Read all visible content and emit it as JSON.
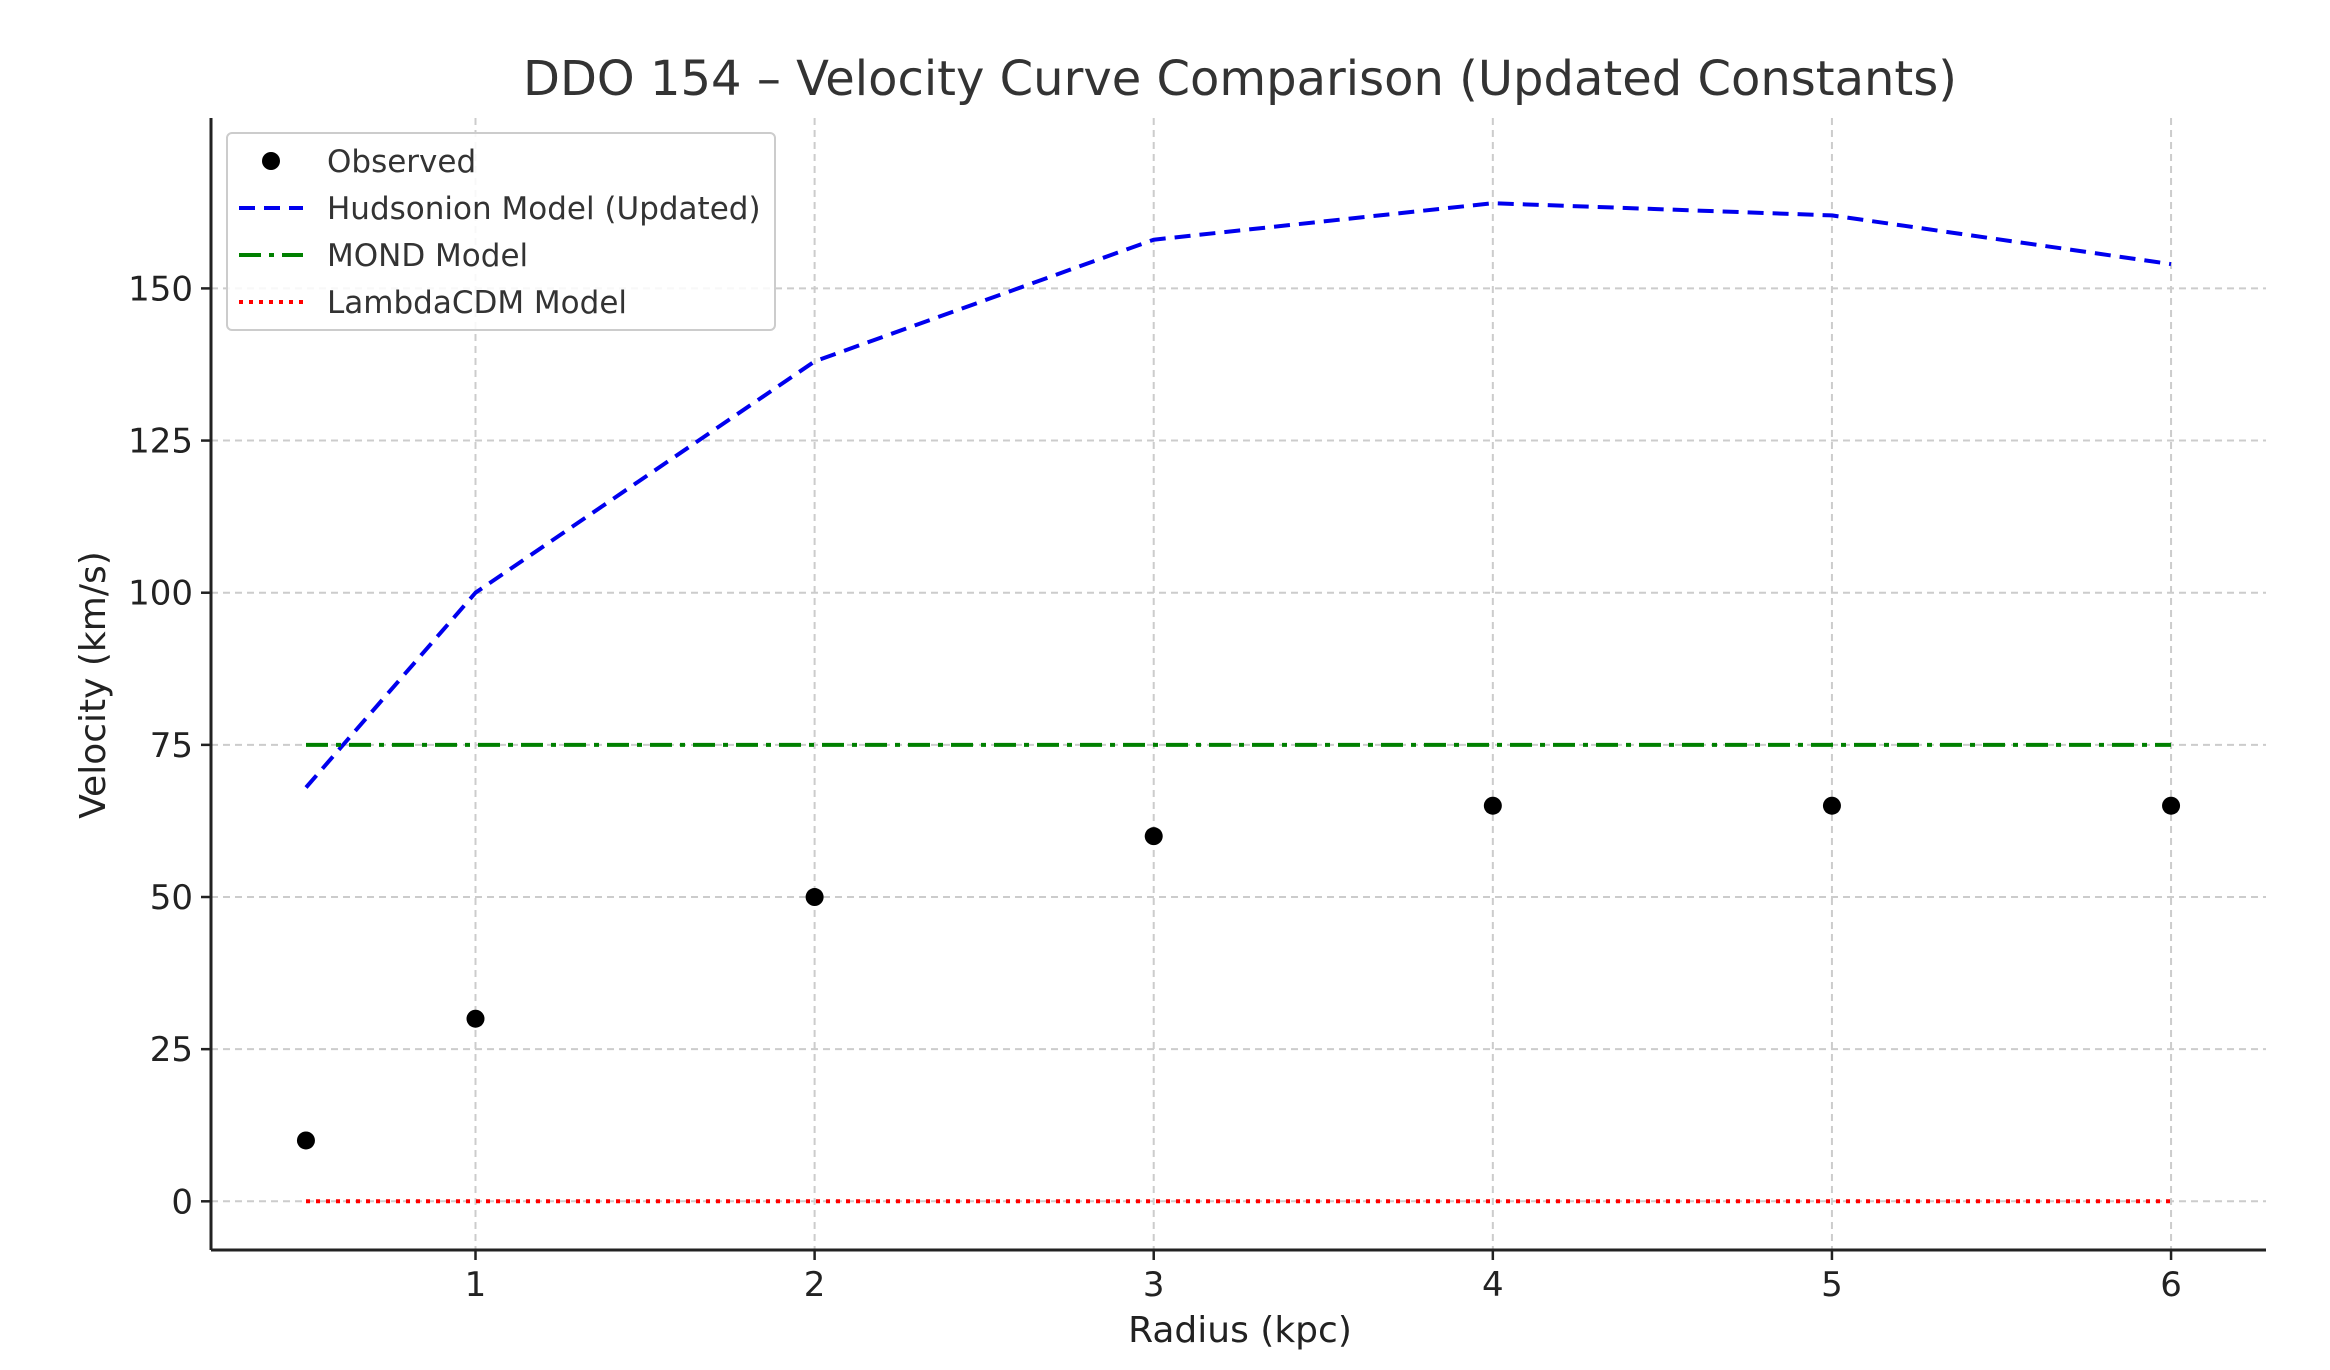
{
  "chart_data": {
    "type": "line",
    "title": "DDO 154 – Velocity Curve Comparison (Updated Constants)",
    "xlabel": "Radius (kpc)",
    "ylabel": "Velocity (km/s)",
    "xlim": [
      0.22,
      6.28
    ],
    "ylim": [
      -8,
      178
    ],
    "xticks": [
      1,
      2,
      3,
      4,
      5,
      6
    ],
    "yticks": [
      0,
      25,
      50,
      75,
      100,
      125,
      150
    ],
    "grid": true,
    "legend_position": "top-left",
    "x": [
      0.5,
      1,
      2,
      3,
      4,
      5,
      6
    ],
    "series": [
      {
        "name": "Observed",
        "kind": "scatter",
        "color": "#000000",
        "values": [
          10,
          30,
          50,
          60,
          65,
          65,
          65
        ]
      },
      {
        "name": "Hudsonion Model (Updated)",
        "kind": "line",
        "style": "dashed",
        "color": "#0000ee",
        "values": [
          68,
          100,
          138,
          158,
          164,
          162,
          154
        ]
      },
      {
        "name": "MOND Model",
        "kind": "line",
        "style": "dashdot",
        "color": "#008000",
        "values": [
          75,
          75,
          75,
          75,
          75,
          75,
          75
        ]
      },
      {
        "name": "LambdaCDM Model",
        "kind": "line",
        "style": "dotted",
        "color": "#ff0000",
        "values": [
          0,
          0,
          0,
          0,
          0,
          0,
          0
        ]
      }
    ]
  }
}
